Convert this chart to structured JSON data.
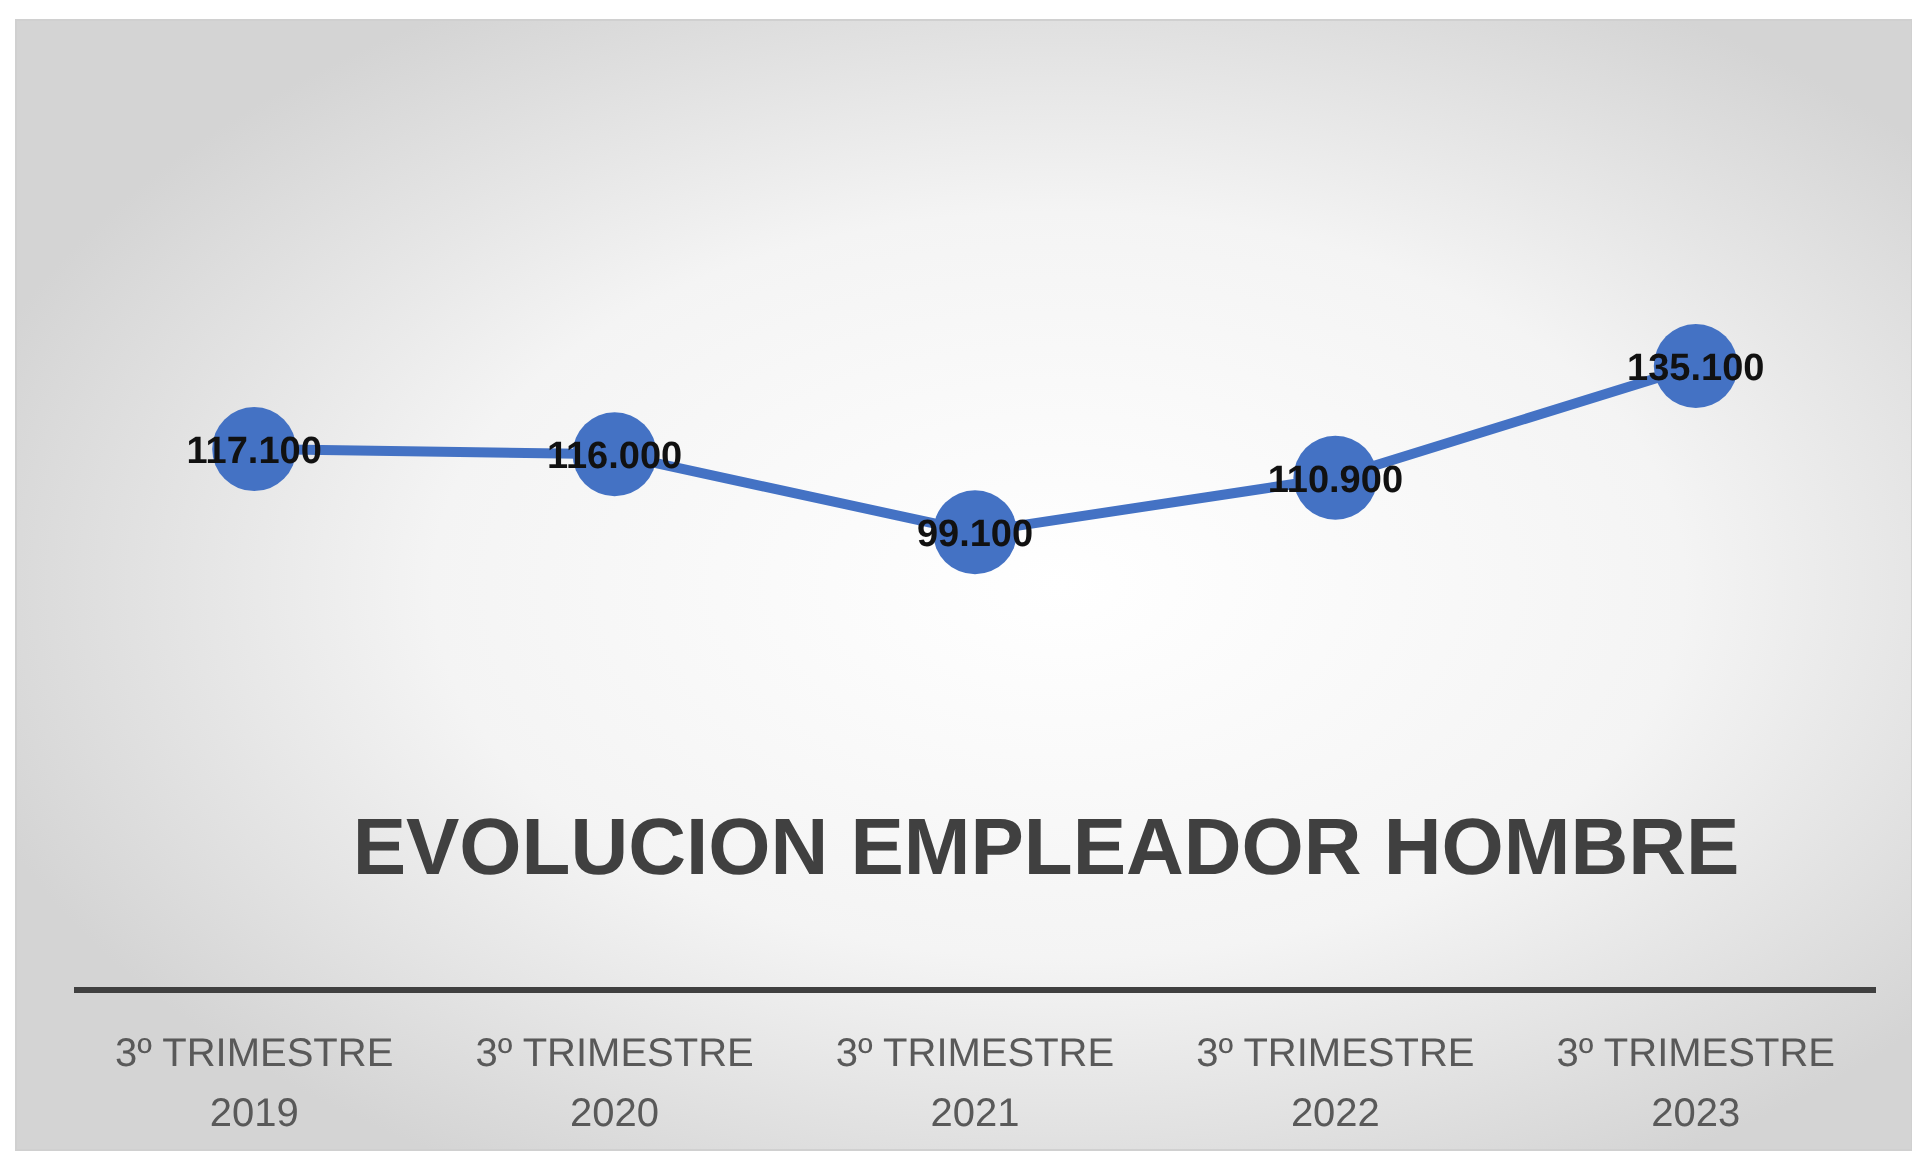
{
  "chart_data": {
    "type": "line",
    "title": "EVOLUCION EMPLEADOR HOMBRE",
    "categories": [
      "3º TRIMESTRE 2019",
      "3º TRIMESTRE 2020",
      "3º TRIMESTRE 2021",
      "3º TRIMESTRE 2022",
      "3º TRIMESTRE 2023"
    ],
    "series": [
      {
        "color": "#4472c4",
        "values": [
          117100,
          116000,
          99100,
          110900,
          135100
        ],
        "value_labels": [
          "117.100",
          "116.000",
          "99.100",
          "110.900",
          "135.100"
        ]
      }
    ],
    "ylim": [
      0,
      210000
    ],
    "tick_labels": "x",
    "marker": "circle"
  }
}
